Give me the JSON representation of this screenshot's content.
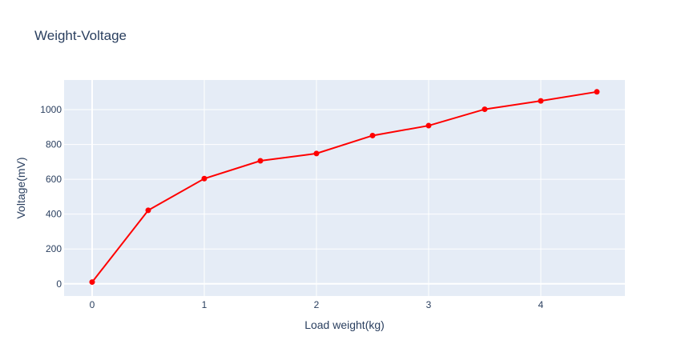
{
  "chart_data": {
    "type": "line",
    "title": "Weight-Voltage",
    "xlabel": "Load weight(kg)",
    "ylabel": "Voltage(mV)",
    "x": [
      0,
      0.5,
      1,
      1.5,
      2,
      2.5,
      3,
      3.5,
      4,
      4.5
    ],
    "series": [
      {
        "values": [
          10,
          422,
          604,
          706,
          748,
          851,
          908,
          1002,
          1050,
          1102
        ]
      }
    ],
    "xlim": [
      -0.25,
      4.75
    ],
    "ylim": [
      -70,
      1170
    ],
    "xticks": [
      0,
      1,
      2,
      3,
      4
    ],
    "yticks": [
      0,
      200,
      400,
      600,
      800,
      1000
    ],
    "grid": true,
    "line_color": "#ff0000",
    "plot_bg": "#e5ecf6",
    "grid_color": "#ffffff"
  }
}
